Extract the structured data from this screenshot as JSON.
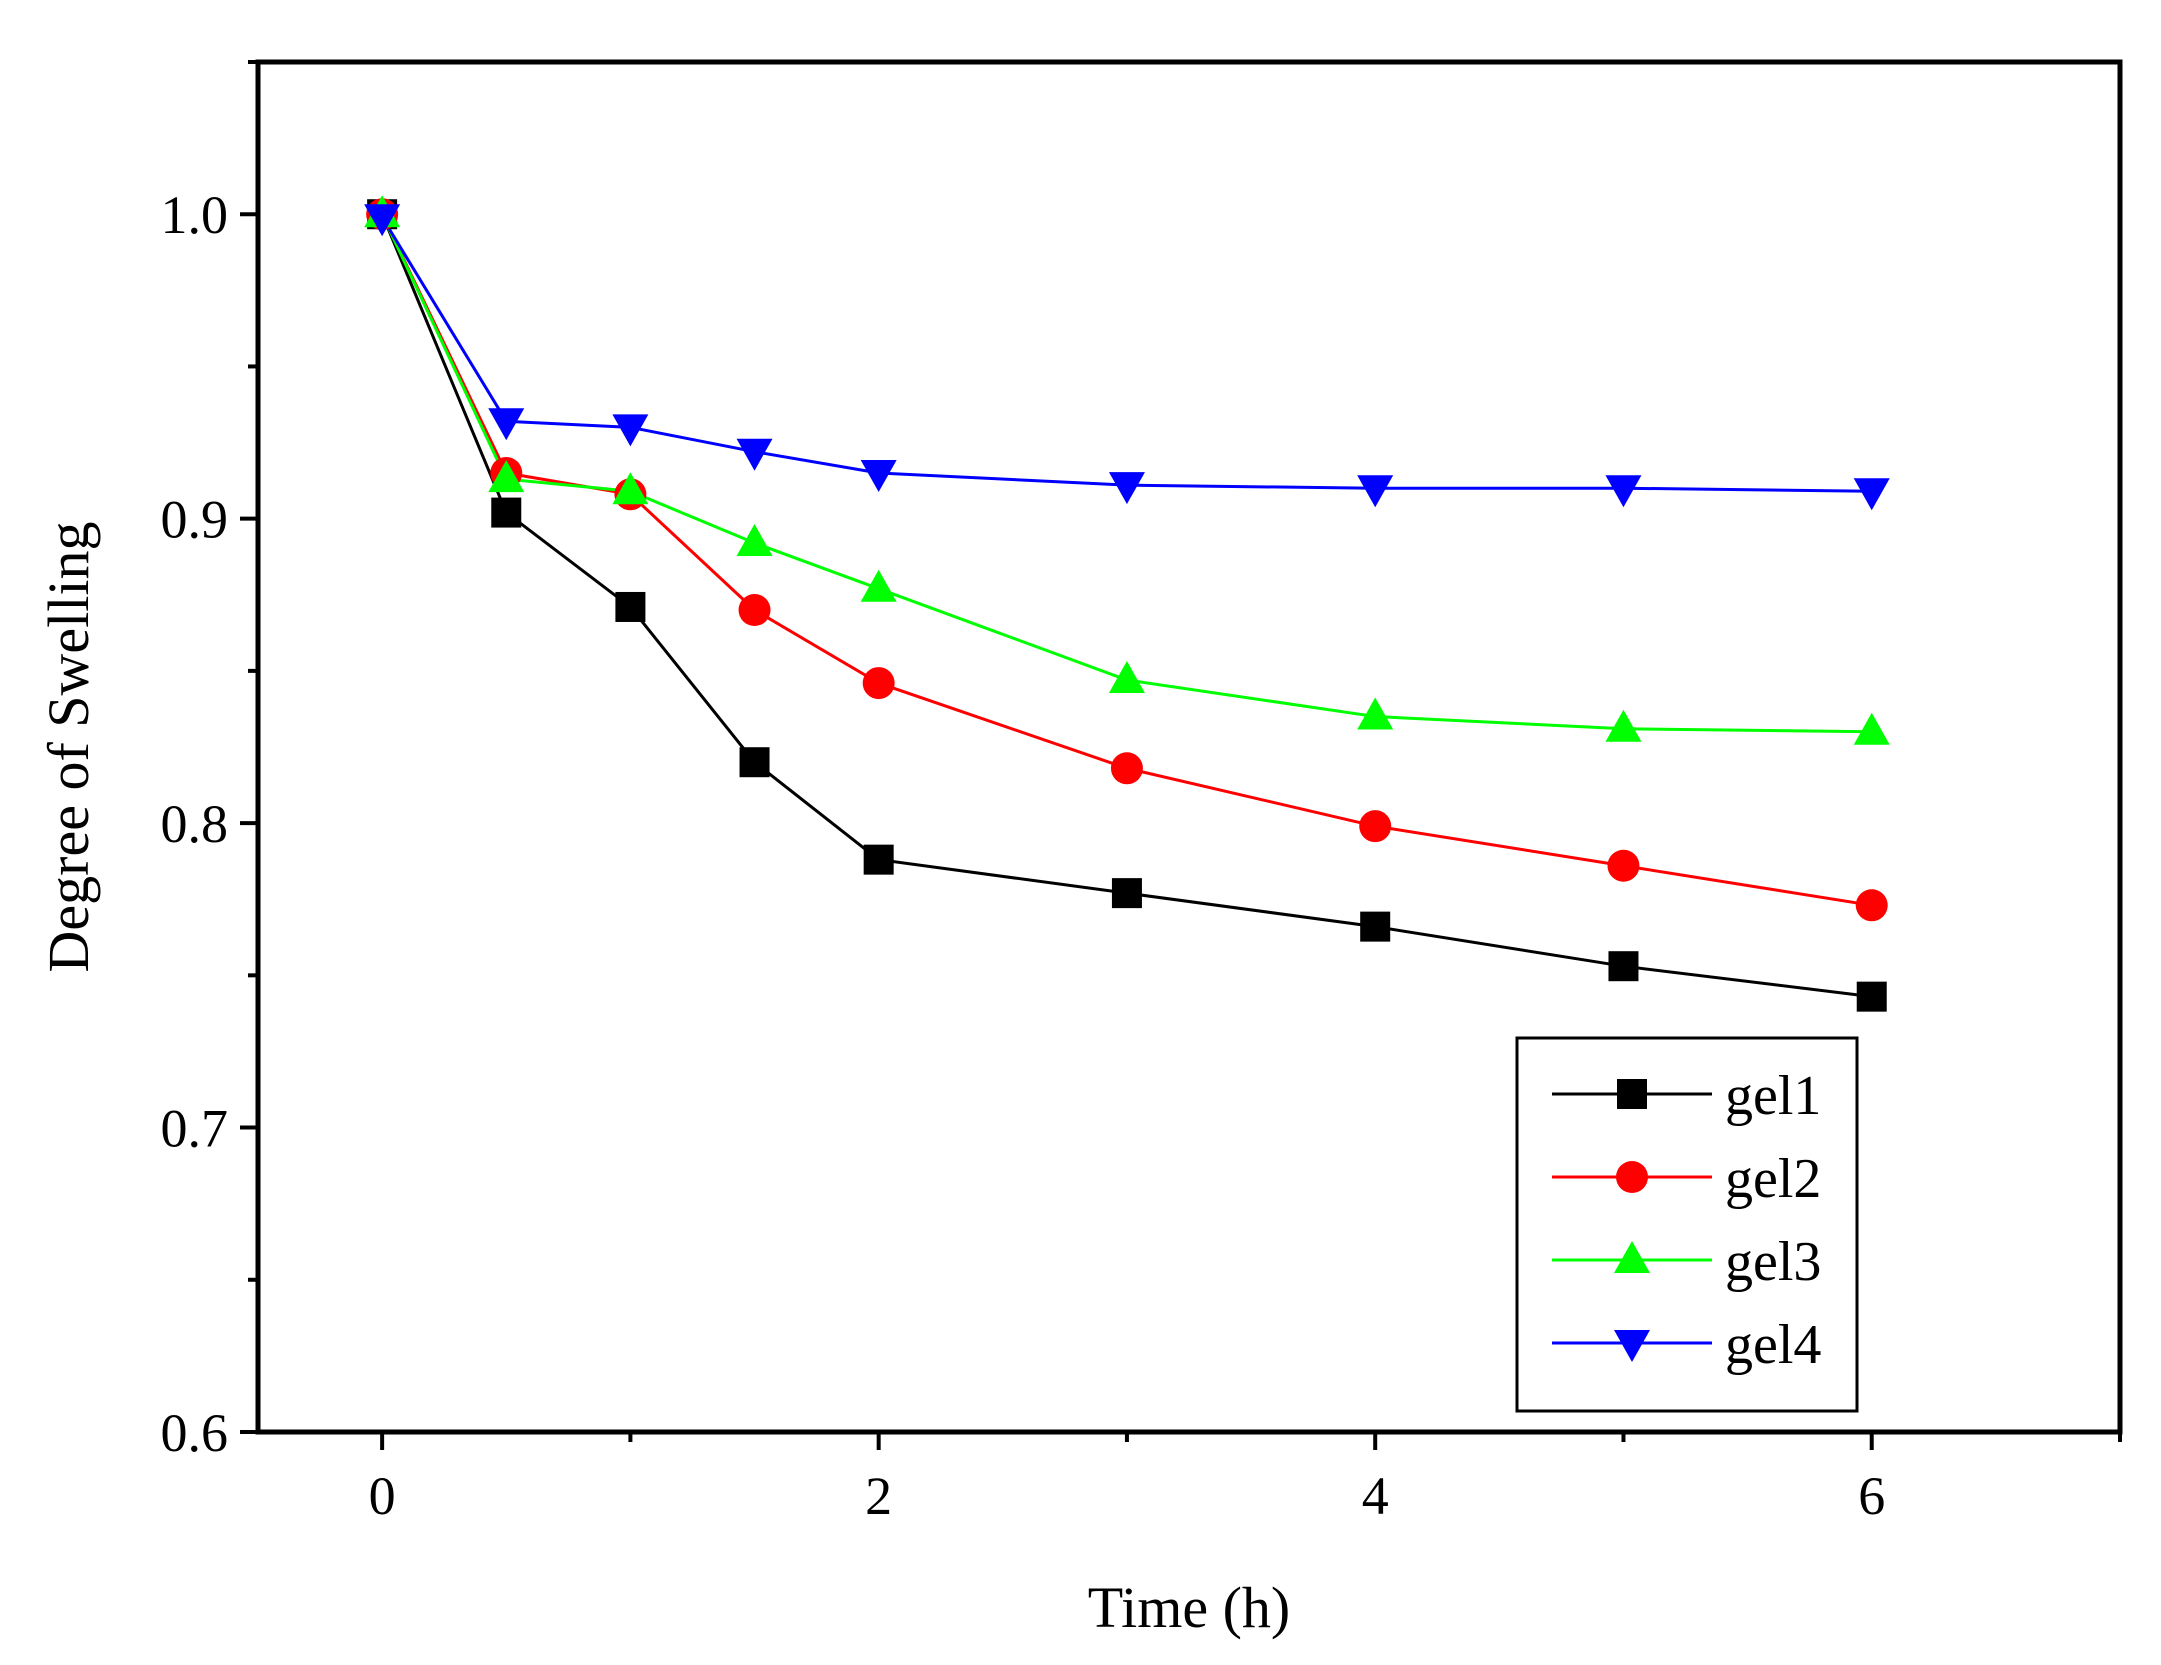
{
  "chart_data": {
    "type": "line",
    "xlabel": "Time (h)",
    "ylabel": "Degree of Swelling",
    "xlim": [
      -0.5,
      7
    ],
    "ylim": [
      0.6,
      1.05
    ],
    "x_ticks": [
      0,
      2,
      4,
      6
    ],
    "x_tick_labels": [
      "0",
      "2",
      "4",
      "6"
    ],
    "y_ticks": [
      0.6,
      0.7,
      0.8,
      0.9,
      1.0
    ],
    "y_tick_labels": [
      "0.6",
      "0.7",
      "0.8",
      "0.9",
      "1.0"
    ],
    "x": [
      0,
      0.5,
      1,
      1.5,
      2,
      3,
      4,
      5,
      6
    ],
    "legend_position": "bottom-right",
    "grid": false,
    "series": [
      {
        "name": "gel1",
        "color": "#000000",
        "marker": "square",
        "values": [
          1.0,
          0.902,
          0.871,
          0.82,
          0.788,
          0.777,
          0.766,
          0.753,
          0.743
        ]
      },
      {
        "name": "gel2",
        "color": "#ff0000",
        "marker": "circle",
        "values": [
          1.0,
          0.915,
          0.908,
          0.87,
          0.846,
          0.818,
          0.799,
          0.786,
          0.773
        ]
      },
      {
        "name": "gel3",
        "color": "#00ff00",
        "marker": "triangle-up",
        "values": [
          1.0,
          0.913,
          0.909,
          0.892,
          0.877,
          0.847,
          0.835,
          0.831,
          0.83
        ]
      },
      {
        "name": "gel4",
        "color": "#0000ff",
        "marker": "triangle-down",
        "values": [
          0.999,
          0.932,
          0.93,
          0.922,
          0.915,
          0.911,
          0.91,
          0.91,
          0.909
        ]
      }
    ]
  }
}
